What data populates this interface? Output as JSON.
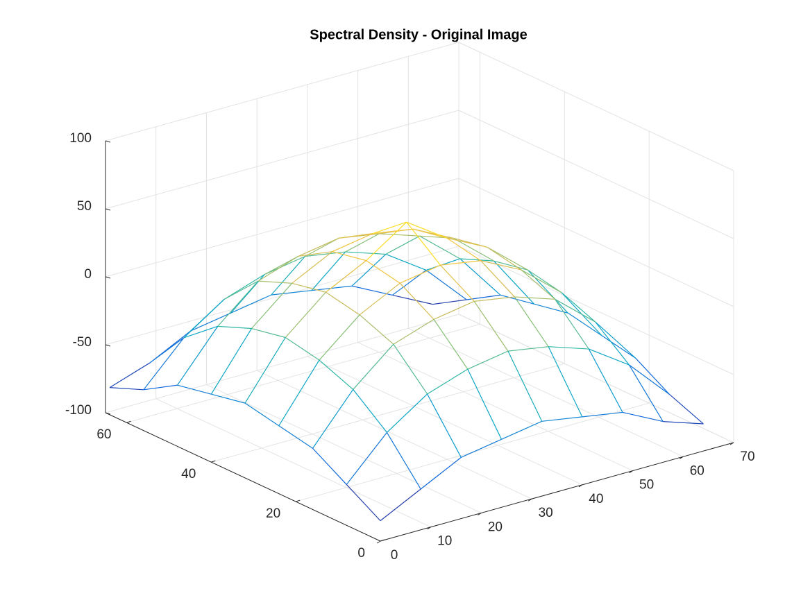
{
  "chart_data": {
    "type": "mesh",
    "title": "Spectral Density - Original Image",
    "x": [
      0,
      8,
      16,
      24,
      32,
      40,
      48,
      56,
      64
    ],
    "y": [
      0,
      8,
      16,
      24,
      32,
      40,
      48,
      56,
      64
    ],
    "z": [
      [
        -85,
        -70,
        -55,
        -50,
        -45,
        -50,
        -55,
        -70,
        -80
      ],
      [
        -70,
        -40,
        -20,
        -10,
        -5,
        -10,
        -20,
        -40,
        -70
      ],
      [
        -55,
        -20,
        5,
        15,
        20,
        15,
        5,
        -20,
        -55
      ],
      [
        -50,
        -10,
        15,
        30,
        35,
        30,
        15,
        -10,
        -50
      ],
      [
        -45,
        -5,
        20,
        35,
        55,
        35,
        20,
        -5,
        -45
      ],
      [
        -50,
        -10,
        15,
        30,
        35,
        30,
        15,
        -10,
        -50
      ],
      [
        -55,
        -20,
        5,
        15,
        20,
        15,
        5,
        -20,
        -55
      ],
      [
        -70,
        -40,
        -20,
        -10,
        -5,
        -10,
        -20,
        -40,
        -70
      ],
      [
        -80,
        -70,
        -55,
        -50,
        -45,
        -50,
        -55,
        -70,
        -85
      ]
    ],
    "xlim": [
      0,
      70
    ],
    "ylim": [
      0,
      65
    ],
    "zlim": [
      -100,
      100
    ],
    "xticks": [
      0,
      10,
      20,
      30,
      40,
      50,
      60,
      70
    ],
    "yticks": [
      0,
      20,
      40,
      60
    ],
    "zticks": [
      -100,
      -50,
      0,
      50,
      100
    ],
    "grid": true,
    "colormap": [
      "#352a87",
      "#0f5cdd",
      "#1481d6",
      "#06a4ca",
      "#2eb7a4",
      "#87bf77",
      "#d1bb59",
      "#fec832",
      "#f9fb0e"
    ]
  }
}
